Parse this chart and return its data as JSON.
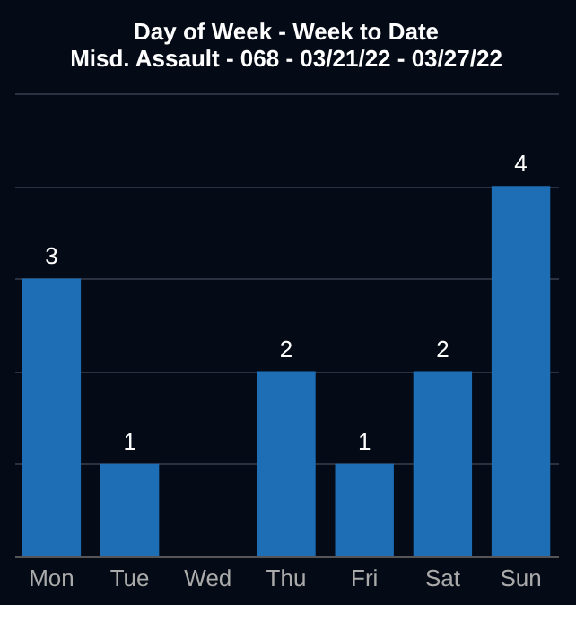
{
  "chart_data": {
    "type": "bar",
    "title": "Day of Week - Week to Date",
    "subtitle": "Misd. Assault - 068 - 03/21/22 - 03/27/22",
    "categories": [
      "Mon",
      "Tue",
      "Wed",
      "Thu",
      "Fri",
      "Sat",
      "Sun"
    ],
    "values": [
      3,
      1,
      0,
      2,
      1,
      2,
      4
    ],
    "value_labels": [
      "3",
      "1",
      null,
      "2",
      "1",
      "2",
      "4"
    ],
    "color": "#1e6eb5",
    "ylim": [
      0,
      5
    ],
    "yticks": [
      {
        "value": 0,
        "label": null
      },
      {
        "value": 1,
        "label": null
      },
      {
        "value": 2,
        "label": null
      },
      {
        "value": 3,
        "label": null
      },
      {
        "value": 4,
        "label": null
      },
      {
        "value": 5,
        "label": null
      }
    ],
    "grid": "y",
    "tick_labels": "x"
  }
}
